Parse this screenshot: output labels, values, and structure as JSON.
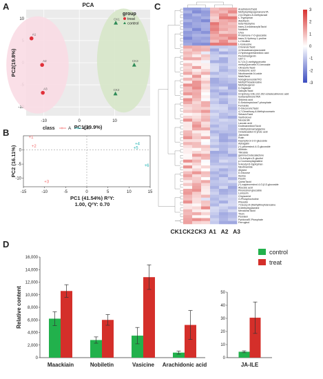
{
  "panels": {
    "a": "A",
    "b": "B",
    "c": "C",
    "d": "D"
  },
  "chart_data": [
    {
      "panel": "A",
      "type": "scatter",
      "title": "PCA",
      "xlabel": "PC1(39.9%)",
      "ylabel": "PC2(19.8%)",
      "xlim": [
        -15,
        20
      ],
      "ylim": [
        -12,
        12
      ],
      "xticks": [
        -10,
        0,
        10
      ],
      "yticks": [
        -10,
        -5,
        0,
        5,
        10
      ],
      "legend": {
        "title": "group",
        "entries": [
          "treat",
          "control"
        ],
        "placement": "top-right"
      },
      "colors": {
        "treat": "#e0303a",
        "control": "#2e8b57",
        "treat_ellipse": "#fadbe4",
        "control_ellipse": "#d7e7c9"
      },
      "series": [
        {
          "name": "treat",
          "points": [
            {
              "label": "A1",
              "x": -13.5,
              "y": 5.5
            },
            {
              "label": "A2",
              "x": -10.5,
              "y": -0.5
            },
            {
              "label": "A3",
              "x": -10.3,
              "y": -6.8
            }
          ]
        },
        {
          "name": "control",
          "points": [
            {
              "label": "CK1",
              "x": 10.3,
              "y": 9.0
            },
            {
              "label": "CK3",
              "x": 15.5,
              "y": -0.5
            },
            {
              "label": "CK2",
              "x": 10.2,
              "y": -7.0
            }
          ]
        }
      ]
    },
    {
      "panel": "B",
      "type": "scatter",
      "xlabel": "PC1 (41.54%) R²Y:",
      "xlabel2": "1.00, Q²Y: 0.70",
      "ylabel": "PC2 (16.11%)",
      "xlim": [
        -15,
        15
      ],
      "ylim": [
        -13,
        5
      ],
      "xticks": [
        -15,
        -10,
        -5,
        0,
        5,
        10,
        15
      ],
      "yticks": [
        -10,
        -5,
        0
      ],
      "legend": {
        "title": "class",
        "entries": [
          "A",
          "CK"
        ],
        "placement": "top"
      },
      "colors": {
        "A": "#f26b6b",
        "CK": "#22b3b3"
      },
      "series": [
        {
          "name": "A",
          "points": [
            {
              "label": "+1",
              "x": -13.2,
              "y": 4.5
            },
            {
              "label": "+2",
              "x": -12.5,
              "y": 1.3
            },
            {
              "label": "+3",
              "x": -9.5,
              "y": -11.2
            }
          ]
        },
        {
          "name": "CK",
          "points": [
            {
              "label": "+4",
              "x": 12.0,
              "y": 2.2
            },
            {
              "label": "+5",
              "x": 11.6,
              "y": 0.8
            },
            {
              "label": "+6",
              "x": 14.2,
              "y": -5.5
            }
          ]
        }
      ]
    },
    {
      "panel": "C",
      "type": "heatmap",
      "columns": [
        "CK1",
        "CK2",
        "CK3",
        "A1",
        "A2",
        "A3"
      ],
      "color_scale": {
        "min": -3,
        "max": 3,
        "ticks": [
          3,
          2,
          1,
          0,
          -1,
          -2,
          -3
        ],
        "low": "#3b4cc0",
        "mid": "#ffffff",
        "high": "#d8312f"
      },
      "rows": [
        "ArachidonicTacid",
        "MethylophiopogonanoneTA",
        "2,6-Dihydro-5-methyluracil",
        "L-Tryptophan",
        "Aldoflavin",
        "beta-Nicotyrine",
        "trans-3-IndoleacrylicTacid",
        "Nobiletin",
        "Urea",
        "Protamone-7-O-glucoside",
        "trans-3-Hydroxy-L-proline",
        "L-Citrulline",
        "L-Isoleucine",
        "2-furanoicTacid",
        "4-Hexadecanoylacroside",
        "2-Hydroxypentanedioic acid",
        "Pectolinarigenin",
        "GA7-1",
        "5,7-Di-O-methylquercetin",
        "methylQuercetin7O-hexoside",
        "CitraconicTacid",
        "Glutaconic acid",
        "Nicotinamide-N-oxide",
        "MalicTacid",
        "NotoginsenosideTR3",
        "MethylThioadenosine",
        "Methyleugenol",
        "D-Tagatose",
        "SalicylicTacid",
        "9-Hydroxy-10E,12Z,15Z-octadecatrienoic acid",
        "IsobavachinoneTAA",
        "Shikimic acid",
        "D-Sedoheptulose7-phosphate",
        "Fumarate",
        "D-GlucuronicTacid",
        "4,7-Dimethoxy-6-Methylcoumarin",
        "SebacicTacid",
        "Xanthotoxol",
        "Neocarolin",
        "Laccaic acid",
        "DodecanedioicTAcid",
        "1-Methylcinnamylglycine",
        "Octadecadien-6-ynoic acid",
        "Jasmonin",
        "Rutin",
        "Kaempferol-3-O-glucoside",
        "Astragalin",
        "(+)-pinoresinol-4-O-glucoside",
        "Allitridin",
        "Tiliroside",
        "gamma-Dodecalactone",
        "1,5-Anhydro-D-glucitol",
        "p-Coumaroylagmatine",
        "N-Acetyl-D-tryptophan",
        "Nicotinamide",
        "Allysine",
        "D-Glucose",
        "Iberine",
        "Fisetin",
        "QuinicTacid",
        "(+)-epipinoresinol-4-O-β-D-glucoside",
        "Abscisic acid",
        "Pinoresinol-glucoside",
        "Lonicerin",
        "Chrysoeriol",
        "O-Phosphocholine",
        "Phloretin",
        "7-Deoxy-8'-(Methylthio)Adenosine",
        "8-Methyltryptamine",
        "MevalonicTacid",
        "Tricin",
        "Psoralen",
        "Pyridoxal5'-Phosphate",
        "Ferruginol"
      ]
    },
    {
      "panel": "D-left",
      "type": "bar",
      "ylabel": "Relative content",
      "categories": [
        "Maackiain",
        "Nobiletin",
        "Vasicine",
        "Arachidonic acid"
      ],
      "ylim": [
        0,
        16000
      ],
      "yticks": [
        "0",
        "2,000",
        "4,000",
        "6,000",
        "8,000",
        "10,000",
        "12,000",
        "14,000",
        "16,000"
      ],
      "colors": {
        "control": "#22b14c",
        "treat": "#d42f2a"
      },
      "series": [
        {
          "name": "control",
          "values": [
            6200,
            2800,
            3500,
            800
          ],
          "errors": [
            1100,
            500,
            1300,
            250
          ]
        },
        {
          "name": "treat",
          "values": [
            10600,
            6000,
            12800,
            5200
          ],
          "errors": [
            1000,
            850,
            1950,
            2300
          ]
        }
      ]
    },
    {
      "panel": "D-right",
      "type": "bar",
      "categories": [
        "JA-ILE"
      ],
      "ylim": [
        0,
        50
      ],
      "yticks": [
        "0",
        "10",
        "20",
        "30",
        "40",
        "50"
      ],
      "legend": {
        "entries": [
          "control",
          "treat"
        ],
        "placement": "top-right"
      },
      "series": [
        {
          "name": "control",
          "values": [
            4.5
          ],
          "errors": [
            0.7
          ]
        },
        {
          "name": "treat",
          "values": [
            30.5
          ],
          "errors": [
            12.0
          ]
        }
      ]
    }
  ]
}
